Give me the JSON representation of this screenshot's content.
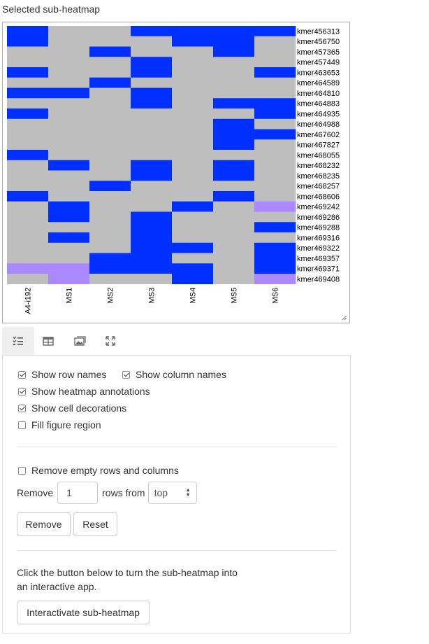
{
  "title": "Selected sub-heatmap",
  "heatmap": {
    "rows": [
      "kmer456313",
      "kmer456750",
      "kmer457365",
      "kmer457449",
      "kmer463653",
      "kmer464589",
      "kmer464810",
      "kmer464883",
      "kmer464935",
      "kmer464988",
      "kmer467602",
      "kmer467827",
      "kmer468055",
      "kmer468232",
      "kmer468235",
      "kmer468257",
      "kmer468606",
      "kmer469242",
      "kmer469286",
      "kmer469288",
      "kmer469316",
      "kmer469322",
      "kmer469357",
      "kmer469371",
      "kmer469408"
    ],
    "columns": [
      "A4-i192",
      "MS1",
      "MS2",
      "MS3",
      "MS4",
      "MS5",
      "MS6"
    ],
    "matrix": [
      [
        1,
        0,
        0,
        1,
        1,
        1,
        1
      ],
      [
        1,
        0,
        0,
        0,
        1,
        1,
        0
      ],
      [
        0,
        0,
        1,
        0,
        0,
        1,
        0
      ],
      [
        0,
        0,
        0,
        1,
        0,
        0,
        0
      ],
      [
        1,
        0,
        0,
        1,
        0,
        0,
        1
      ],
      [
        0,
        0,
        1,
        0,
        0,
        0,
        0
      ],
      [
        1,
        1,
        0,
        1,
        0,
        0,
        0
      ],
      [
        0,
        0,
        0,
        1,
        0,
        1,
        1
      ],
      [
        1,
        0,
        0,
        0,
        0,
        0,
        1
      ],
      [
        0,
        0,
        0,
        0,
        0,
        1,
        0
      ],
      [
        0,
        0,
        0,
        0,
        0,
        1,
        1
      ],
      [
        0,
        0,
        0,
        0,
        0,
        1,
        0
      ],
      [
        1,
        0,
        0,
        0,
        0,
        0,
        0
      ],
      [
        0,
        1,
        0,
        1,
        0,
        1,
        0
      ],
      [
        0,
        0,
        0,
        1,
        0,
        1,
        0
      ],
      [
        0,
        0,
        1,
        0,
        0,
        0,
        0
      ],
      [
        1,
        0,
        0,
        0,
        0,
        1,
        0
      ],
      [
        0,
        1,
        0,
        0,
        1,
        0,
        2
      ],
      [
        0,
        1,
        0,
        1,
        0,
        0,
        0
      ],
      [
        0,
        0,
        0,
        1,
        0,
        0,
        1
      ],
      [
        0,
        1,
        0,
        1,
        0,
        0,
        0
      ],
      [
        0,
        0,
        0,
        1,
        1,
        0,
        1
      ],
      [
        0,
        0,
        1,
        1,
        0,
        0,
        1
      ],
      [
        2,
        2,
        1,
        1,
        1,
        0,
        1
      ],
      [
        0,
        2,
        0,
        0,
        1,
        0,
        2
      ]
    ],
    "colors": {
      "0": "#bebebe",
      "1": "#0030ff",
      "2": "#aa88ff"
    }
  },
  "tabs": [
    {
      "name": "tab-controls",
      "icon": "list-check-icon"
    },
    {
      "name": "tab-table",
      "icon": "table-icon"
    },
    {
      "name": "tab-image",
      "icon": "image-icon"
    },
    {
      "name": "tab-expand",
      "icon": "expand-icon"
    }
  ],
  "options": {
    "show_row_names": "Show row names",
    "show_column_names": "Show column names",
    "show_heatmap_annotations": "Show heatmap annotations",
    "show_cell_decorations": "Show cell decorations",
    "fill_figure_region": "Fill figure region",
    "remove_empty": "Remove empty rows and columns",
    "checked": {
      "show_row_names": true,
      "show_column_names": true,
      "show_heatmap_annotations": true,
      "show_cell_decorations": true,
      "fill_figure_region": false,
      "remove_empty": false
    }
  },
  "remove_row": {
    "label_before": "Remove",
    "count": "1",
    "label_mid": "rows from",
    "direction": "top"
  },
  "buttons": {
    "remove": "Remove",
    "reset": "Reset",
    "interactivate": "Interactivate sub-heatmap"
  },
  "help_text": "Click the button below to turn the sub-heatmap into an interactive app."
}
